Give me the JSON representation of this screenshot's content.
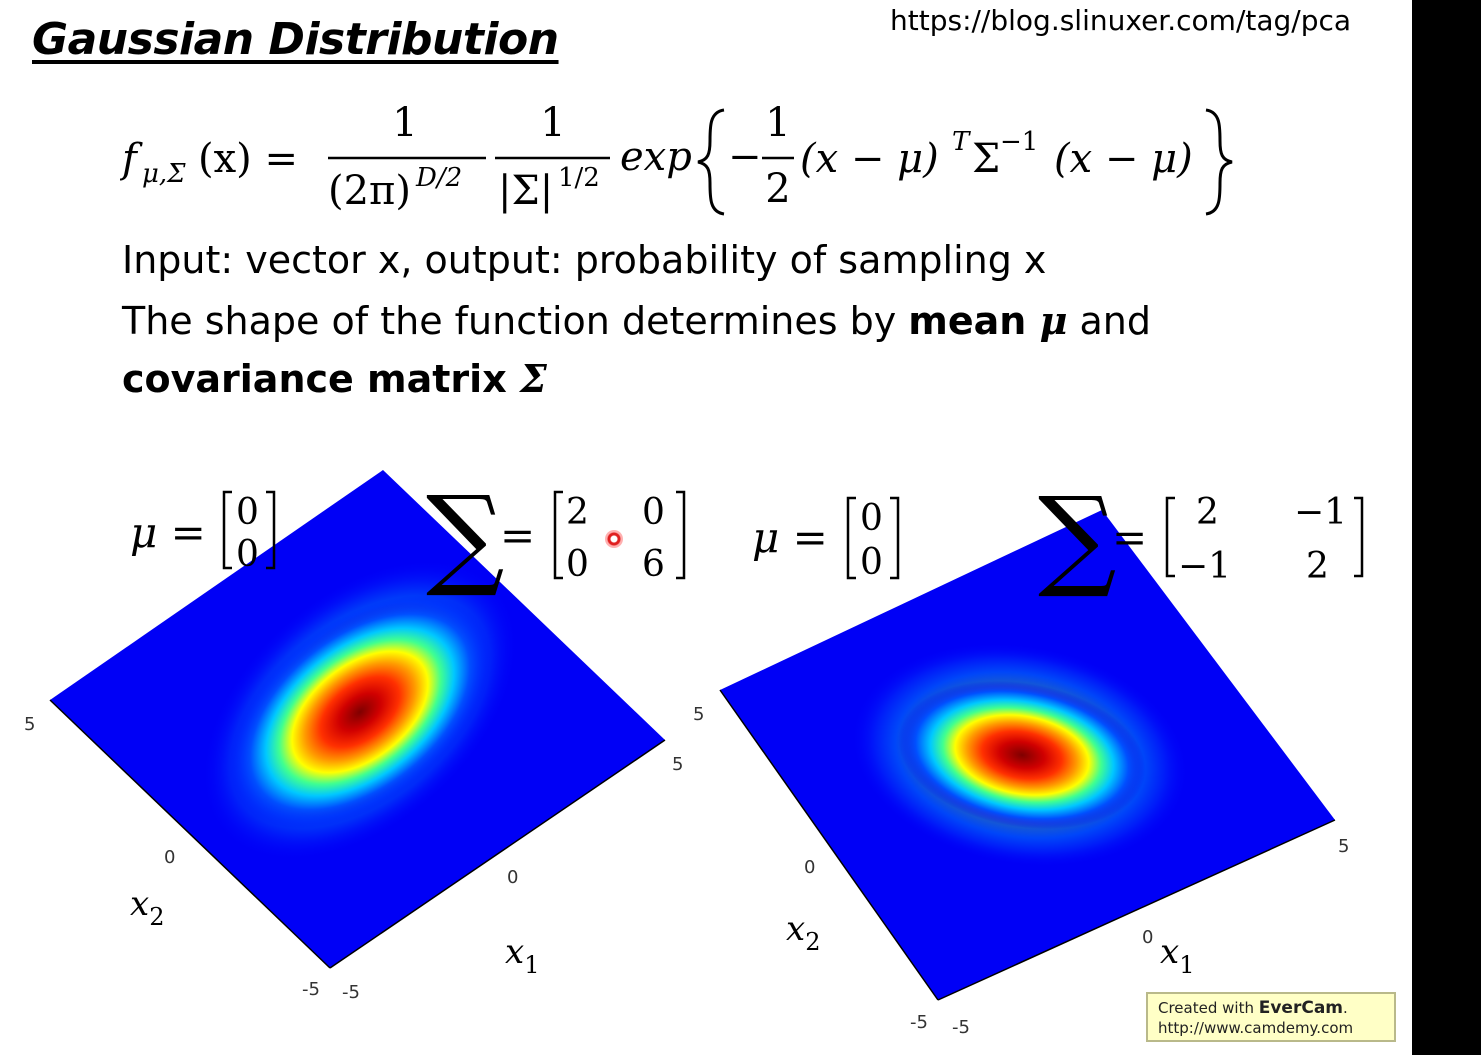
{
  "slide": {
    "title": "Gaussian Distribution",
    "source_url": "https://blog.slinuxer.com/tag/pca",
    "formula": {
      "lhs_f": "f",
      "lhs_sub": "μ,Σ",
      "lhs_arg": "(x) =",
      "frac1_num": "1",
      "frac1_den": "(2π)",
      "frac1_den_sup": "D/2",
      "frac2_num": "1",
      "frac2_den": "|Σ|",
      "frac2_den_sup": "1/2",
      "exp_word": "exp",
      "minus": "−",
      "half_num": "1",
      "half_den": "2",
      "term_a": "(x − μ)",
      "term_a_sup": "T",
      "sigma": "Σ",
      "sigma_sup": "−1",
      "term_b": "(x − μ)"
    },
    "lines": {
      "line1": "Input: vector x, output: probability of sampling x",
      "line2_text": "The shape of the function determines by ",
      "line2_bold": "mean ",
      "line2_mu": "μ",
      "line2_end": " and",
      "line3_bold": "covariance matrix ",
      "line3_sigma": "Σ"
    }
  },
  "plots": [
    {
      "mu_symbol": "μ =",
      "mu": [
        "0",
        "0"
      ],
      "sigma_symbol": "∑",
      "equals": "=",
      "sigma": [
        [
          "2",
          "0"
        ],
        [
          "0",
          "6"
        ]
      ],
      "colormap": [
        "#00007f",
        "#0000ff",
        "#00bfff",
        "#00ff80",
        "#ffff00",
        "#ff8000",
        "#ff0000",
        "#7f0000"
      ],
      "ticks": {
        "x2_pos": "5",
        "x2_zero": "0",
        "x2_neg": "-5",
        "x1_pos": "5",
        "x1_zero": "0",
        "x1_neg": "-5"
      },
      "axis_labels": {
        "x1": "x",
        "x1_sub": "1",
        "x2": "x",
        "x2_sub": "2"
      }
    },
    {
      "mu_symbol": "μ =",
      "mu": [
        "0",
        "0"
      ],
      "sigma_symbol": "∑",
      "equals": "=",
      "sigma": [
        [
          "2",
          "−1"
        ],
        [
          "−1",
          "2"
        ]
      ],
      "colormap": [
        "#00007f",
        "#0000ff",
        "#00bfff",
        "#00ff80",
        "#ffff00",
        "#ff8000",
        "#ff0000",
        "#7f0000"
      ],
      "ticks": {
        "x2_pos": "5",
        "x2_zero": "0",
        "x2_neg": "-5",
        "x1_pos": "5",
        "x1_zero": "0",
        "x1_neg": "-5"
      },
      "axis_labels": {
        "x1": "x",
        "x1_sub": "1",
        "x2": "x",
        "x2_sub": "2"
      }
    }
  ],
  "watermark": {
    "line1_prefix": "Created with ",
    "line1_brand": "EverCam",
    "line1_suffix": ".",
    "line2": "http://www.camdemy.com"
  }
}
